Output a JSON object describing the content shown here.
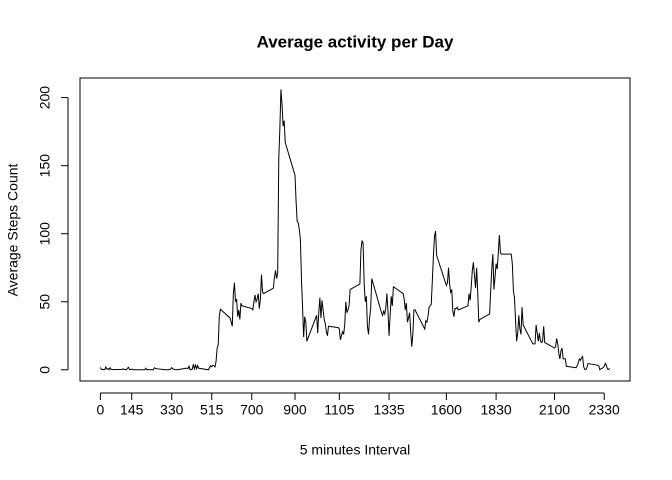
{
  "chart_data": {
    "type": "line",
    "title": "Average activity per Day",
    "x_label": "5 minutes Interval",
    "y_label": "Average Steps Count",
    "x": [
      0,
      5,
      10,
      15,
      20,
      25,
      30,
      35,
      40,
      45,
      50,
      55,
      100,
      105,
      110,
      115,
      120,
      125,
      130,
      135,
      140,
      145,
      150,
      155,
      200,
      205,
      210,
      215,
      220,
      225,
      230,
      235,
      240,
      245,
      250,
      255,
      300,
      305,
      310,
      315,
      320,
      325,
      330,
      335,
      340,
      345,
      350,
      355,
      400,
      405,
      410,
      415,
      420,
      425,
      430,
      435,
      440,
      445,
      450,
      455,
      500,
      505,
      510,
      515,
      520,
      525,
      530,
      535,
      540,
      545,
      550,
      555,
      600,
      605,
      610,
      615,
      620,
      625,
      630,
      635,
      640,
      645,
      650,
      655,
      700,
      705,
      710,
      715,
      720,
      725,
      730,
      735,
      740,
      745,
      750,
      755,
      800,
      805,
      810,
      815,
      820,
      825,
      830,
      835,
      840,
      845,
      850,
      855,
      900,
      905,
      910,
      915,
      920,
      925,
      930,
      935,
      940,
      945,
      950,
      955,
      1000,
      1005,
      1010,
      1015,
      1020,
      1025,
      1030,
      1035,
      1040,
      1045,
      1050,
      1055,
      1100,
      1105,
      1110,
      1115,
      1120,
      1125,
      1130,
      1135,
      1140,
      1145,
      1150,
      1155,
      1200,
      1205,
      1210,
      1215,
      1220,
      1225,
      1230,
      1235,
      1240,
      1245,
      1250,
      1255,
      1300,
      1305,
      1310,
      1315,
      1320,
      1325,
      1330,
      1335,
      1340,
      1345,
      1350,
      1355,
      1400,
      1405,
      1410,
      1415,
      1420,
      1425,
      1430,
      1435,
      1440,
      1445,
      1450,
      1455,
      1500,
      1505,
      1510,
      1515,
      1520,
      1525,
      1530,
      1535,
      1540,
      1545,
      1550,
      1555,
      1600,
      1605,
      1610,
      1615,
      1620,
      1625,
      1630,
      1635,
      1640,
      1645,
      1650,
      1655,
      1700,
      1705,
      1710,
      1715,
      1720,
      1725,
      1730,
      1735,
      1740,
      1745,
      1750,
      1755,
      1800,
      1805,
      1810,
      1815,
      1820,
      1825,
      1830,
      1835,
      1840,
      1845,
      1850,
      1855,
      1900,
      1905,
      1910,
      1915,
      1920,
      1925,
      1930,
      1935,
      1940,
      1945,
      1950,
      1955,
      2000,
      2005,
      2010,
      2015,
      2020,
      2025,
      2030,
      2035,
      2040,
      2045,
      2050,
      2055,
      2100,
      2105,
      2110,
      2115,
      2120,
      2125,
      2130,
      2135,
      2140,
      2145,
      2150,
      2155,
      2200,
      2205,
      2210,
      2215,
      2220,
      2225,
      2230,
      2235,
      2240,
      2245,
      2250,
      2255,
      2300,
      2305,
      2310,
      2315,
      2320,
      2325,
      2330,
      2335,
      2340,
      2345,
      2350,
      2355
    ],
    "values": [
      1.7,
      0.3,
      0.1,
      0.2,
      0.1,
      2.1,
      0.5,
      0.9,
      0,
      1.5,
      0.3,
      0.1,
      0.3,
      0.7,
      0.2,
      0.3,
      0,
      1.1,
      1.8,
      0.2,
      0.2,
      0.4,
      0.3,
      0,
      0,
      0,
      1.1,
      0,
      0.2,
      0.1,
      0,
      0.2,
      0,
      0,
      1.5,
      0.9,
      0,
      0,
      0,
      0,
      0.2,
      0.6,
      1.6,
      0.6,
      0.5,
      0.1,
      0,
      0,
      1.2,
      0.9,
      2.6,
      0,
      0.3,
      0.4,
      4.1,
      0.7,
      3.5,
      0.8,
      3.1,
      1.1,
      0,
      1.6,
      3,
      2.2,
      3.2,
      3,
      2.1,
      6.1,
      16,
      18.3,
      39.5,
      44.5,
      38,
      35,
      32,
      56,
      64,
      50,
      52,
      39,
      44,
      37,
      49,
      47,
      45,
      44,
      50,
      55,
      50,
      52,
      56,
      45,
      52,
      70,
      57,
      56,
      60,
      68,
      73,
      67,
      71,
      155,
      177,
      206,
      195,
      179,
      183,
      167,
      143,
      124,
      109,
      108,
      103,
      96,
      66,
      46,
      24,
      39,
      35,
      21,
      40,
      27,
      42,
      53,
      38,
      51,
      44,
      37,
      34,
      28,
      25,
      32,
      31,
      30,
      22,
      25,
      28,
      26,
      33,
      50,
      42,
      44,
      47,
      59,
      63,
      88,
      95,
      93,
      63,
      50,
      54,
      32,
      26,
      38,
      45,
      67,
      42,
      40,
      43,
      41,
      46,
      56,
      43,
      25,
      40,
      54,
      47,
      61,
      56,
      52,
      44,
      49,
      35,
      38,
      42,
      28,
      17,
      26,
      44,
      44,
      30,
      36,
      35,
      39,
      46,
      47,
      48,
      65,
      83,
      98,
      102,
      84,
      62,
      64,
      75,
      63,
      57,
      59,
      43,
      39,
      45,
      45,
      46,
      44,
      47,
      56,
      51,
      61,
      73,
      79,
      69,
      60,
      75,
      57,
      35,
      37,
      41,
      58,
      74,
      85,
      59,
      68,
      78,
      74,
      85,
      99,
      86,
      85,
      85,
      78,
      58,
      53,
      36,
      21,
      27,
      40,
      30,
      26,
      46,
      33,
      19,
      19,
      19,
      33,
      27,
      21,
      27,
      21,
      20,
      21,
      32,
      20,
      16,
      17,
      23,
      19,
      12,
      8,
      14,
      16,
      8,
      8,
      8,
      2.6,
      1.5,
      3,
      5,
      8,
      7,
      8.7,
      9.8,
      2.2,
      0.3,
      0.1,
      1.6,
      4.6,
      3.3,
      2.8,
      0,
      0.8,
      1,
      1.6,
      2.6,
      4.7,
      3.3,
      0.6,
      0.2,
      1.1
    ],
    "color": "#000000",
    "xlim": [
      -94.2,
      2449.2
    ],
    "ylim": [
      -8.24,
      214.41
    ],
    "xticks": [
      0,
      145,
      330,
      515,
      700,
      900,
      1105,
      1335,
      1600,
      1830,
      2100,
      2330
    ],
    "yticks": [
      0,
      50,
      100,
      150,
      200
    ]
  }
}
